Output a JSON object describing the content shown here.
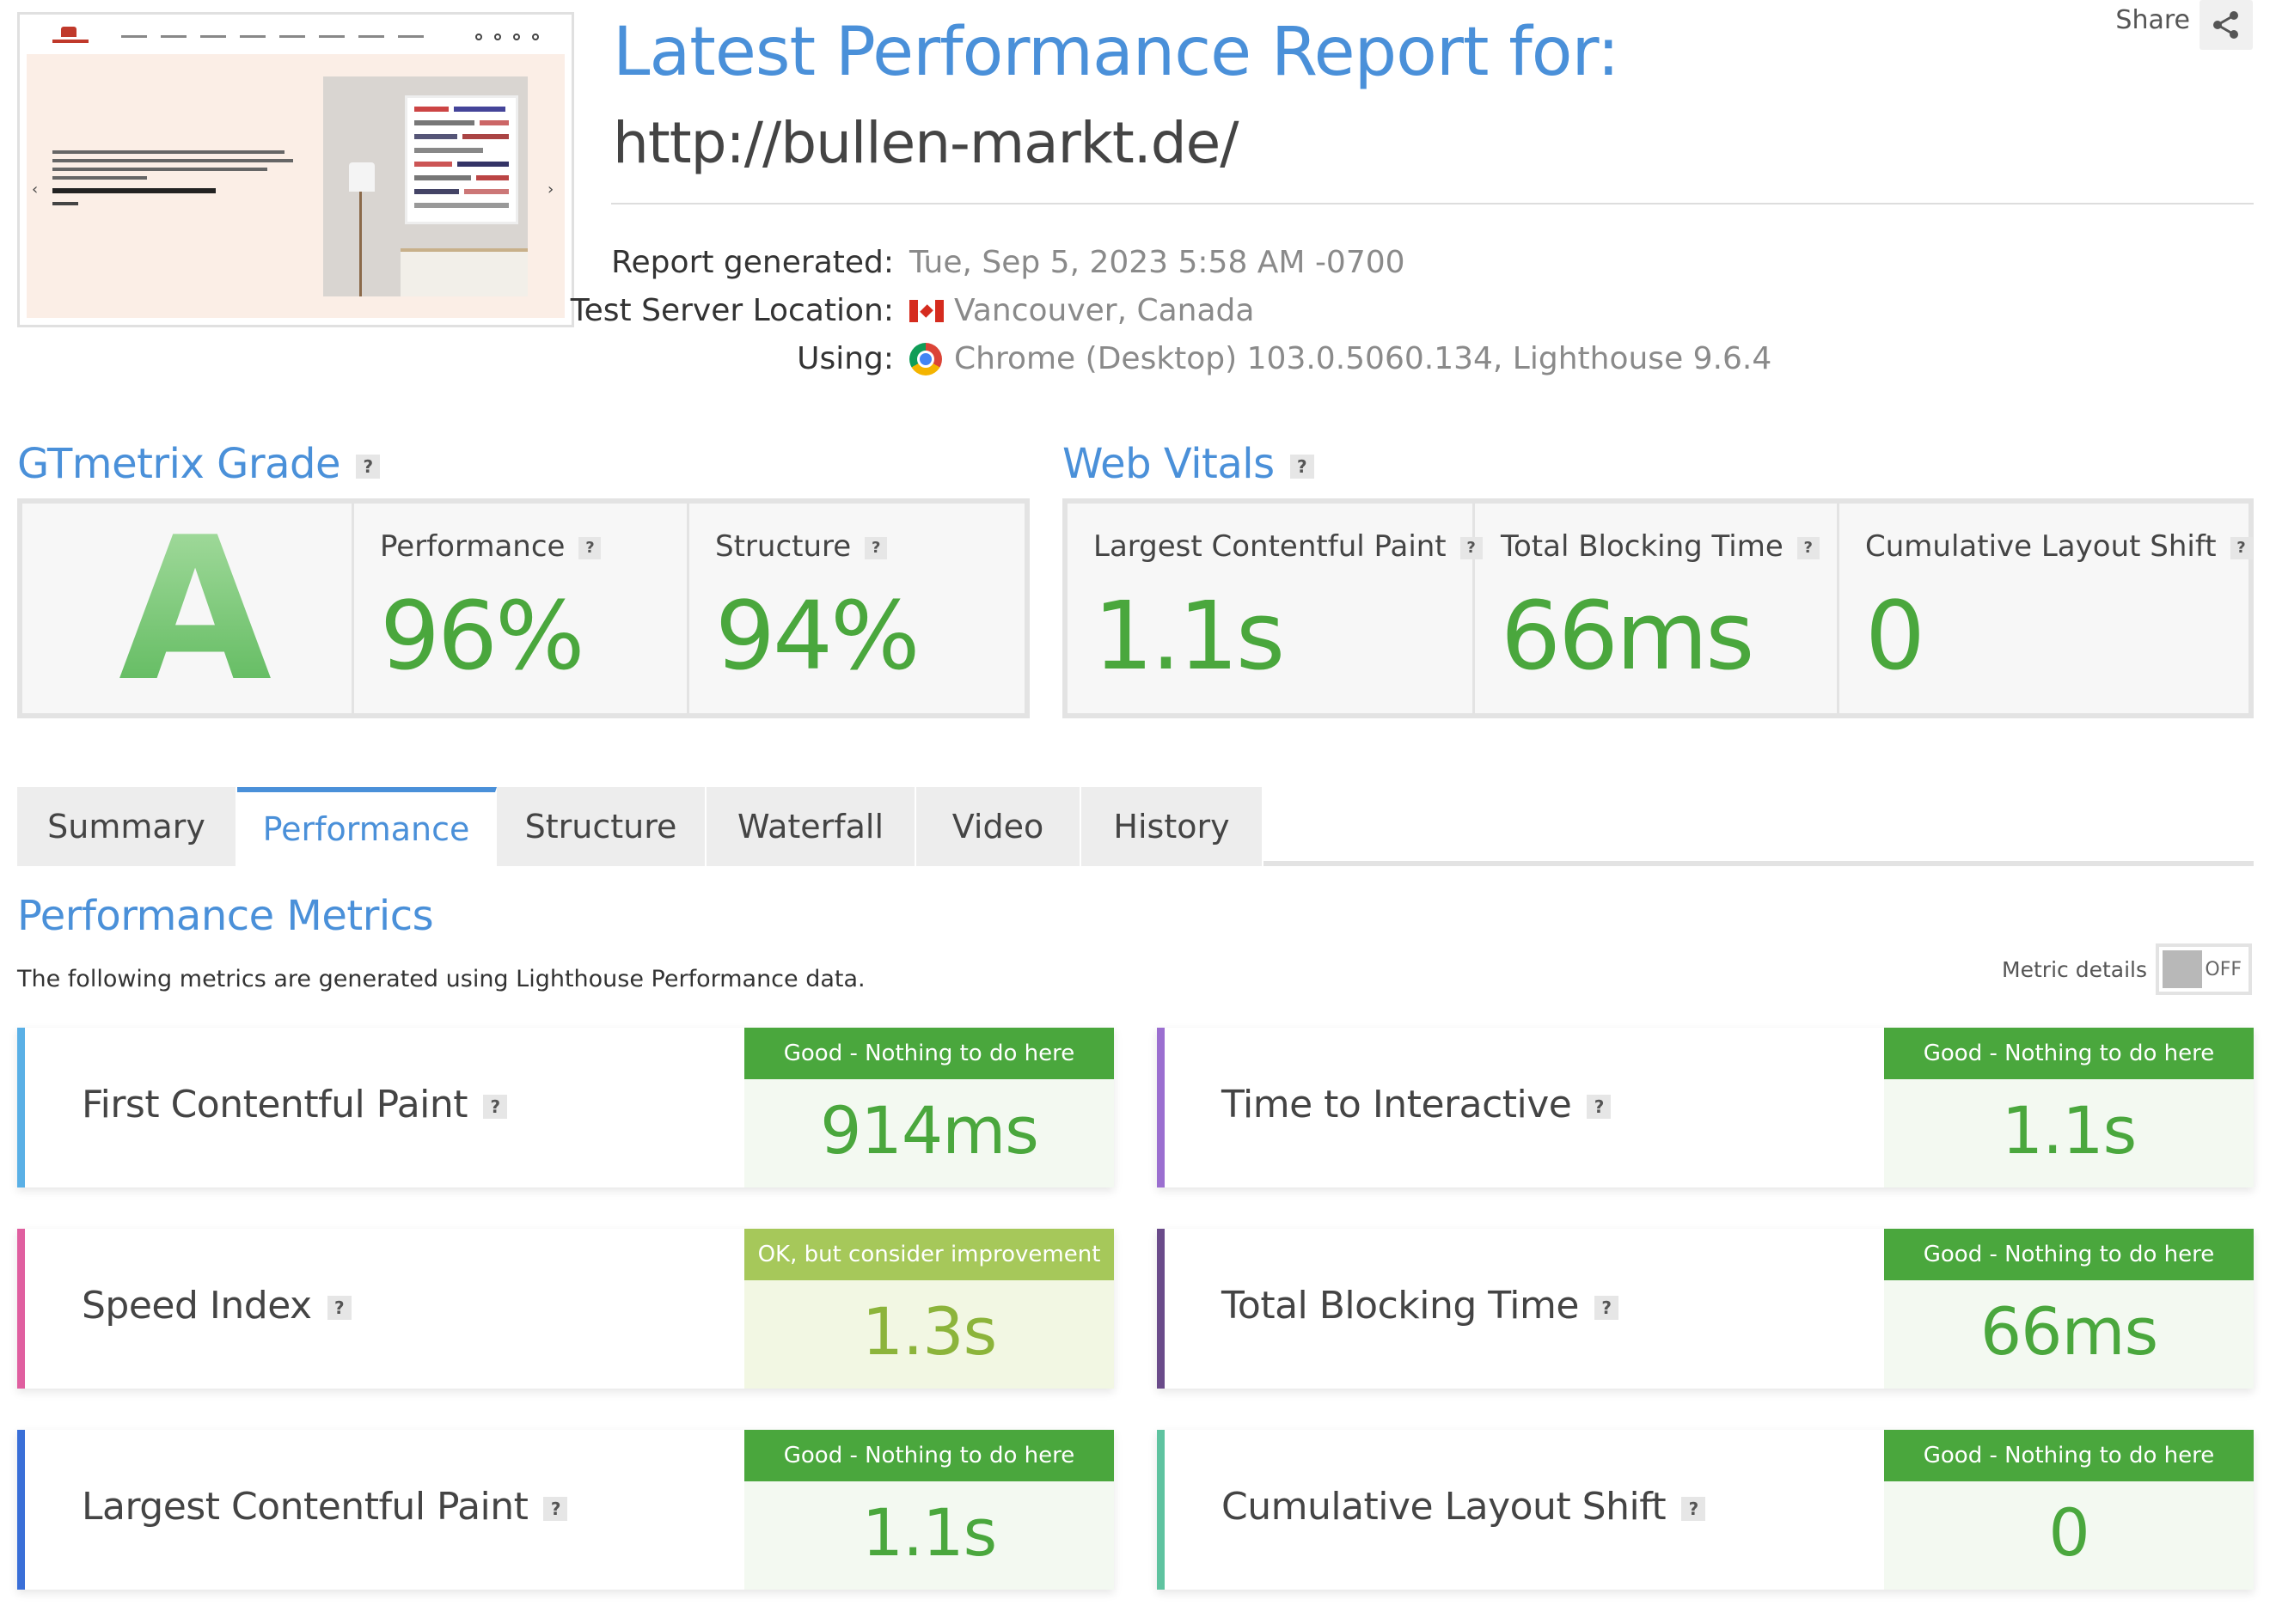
{
  "header": {
    "title": "Latest Performance Report for:",
    "url": "http://bullen-markt.de/",
    "share_label": "Share"
  },
  "meta": [
    {
      "label": "Report generated:",
      "value": "Tue, Sep 5, 2023 5:58 AM -0700"
    },
    {
      "label": "Test Server Location:",
      "value": "Vancouver, Canada",
      "icon": "canada-flag-icon"
    },
    {
      "label": "Using:",
      "value": "Chrome (Desktop) 103.0.5060.134, Lighthouse 9.6.4",
      "icon": "chrome-icon"
    }
  ],
  "gtmetrix": {
    "title": "GTmetrix Grade",
    "grade": "A",
    "performance": {
      "label": "Performance",
      "value": "96%"
    },
    "structure": {
      "label": "Structure",
      "value": "94%"
    }
  },
  "web_vitals": {
    "title": "Web Vitals",
    "items": [
      {
        "label": "Largest Contentful Paint",
        "value": "1.1s"
      },
      {
        "label": "Total Blocking Time",
        "value": "66ms"
      },
      {
        "label": "Cumulative Layout Shift",
        "value": "0"
      }
    ]
  },
  "tabs": [
    {
      "label": "Summary",
      "active": false
    },
    {
      "label": "Performance",
      "active": true
    },
    {
      "label": "Structure",
      "active": false
    },
    {
      "label": "Waterfall",
      "active": false
    },
    {
      "label": "Video",
      "active": false
    },
    {
      "label": "History",
      "active": false
    }
  ],
  "performance_metrics": {
    "title": "Performance Metrics",
    "description": "The following metrics are generated using Lighthouse Performance data.",
    "toggle_label": "Metric details",
    "toggle_state": "OFF",
    "cards": [
      {
        "label": "First Contentful Paint",
        "status": "Good - Nothing to do here",
        "value": "914ms",
        "color": "#5ab0e6"
      },
      {
        "label": "Time to Interactive",
        "status": "Good - Nothing to do here",
        "value": "1.1s",
        "color": "#9b6fd0"
      },
      {
        "label": "Speed Index",
        "status": "OK, but consider improvement",
        "value": "1.3s",
        "color": "#e05fa0"
      },
      {
        "label": "Total Blocking Time",
        "status": "Good - Nothing to do here",
        "value": "66ms",
        "color": "#6a4b8a"
      },
      {
        "label": "Largest Contentful Paint",
        "status": "Good - Nothing to do here",
        "value": "1.1s",
        "color": "#3a6fd8"
      },
      {
        "label": "Cumulative Layout Shift",
        "status": "Good - Nothing to do here",
        "value": "0",
        "color": "#5fc3a0"
      }
    ]
  },
  "colors": {
    "accent": "#4a90d9",
    "good": "#4aa73d",
    "ok": "#a6c85a"
  }
}
